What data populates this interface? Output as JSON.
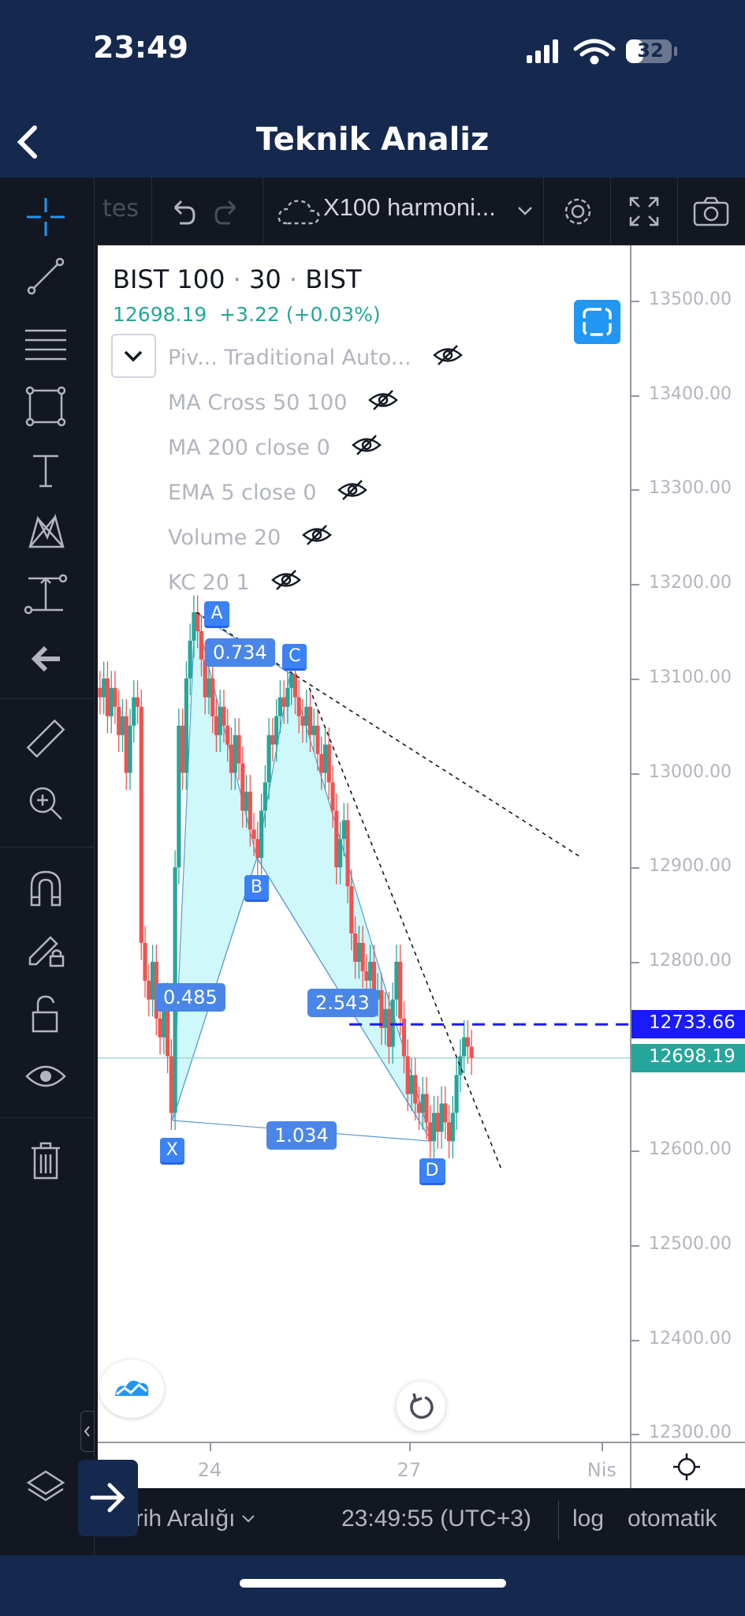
{
  "status_bar": {
    "time": "23:49",
    "battery": "32"
  },
  "header": {
    "title": "Teknik Analiz",
    "back_icon": "chevron-left-icon"
  },
  "toolbar": {
    "partial_tab": "tes",
    "layout_name": "X100 harmoni..."
  },
  "legend": {
    "symbol": "BIST 100",
    "sep1": "·",
    "interval": "30",
    "sep2": "·",
    "exchange": "BIST",
    "price": "12698.19",
    "change": "+3.22",
    "change_pct": "(+0.03%)",
    "indicators": [
      {
        "label": "Piv... Traditional Auto..."
      },
      {
        "label": "MA Cross 50 100"
      },
      {
        "label": "MA 200 close 0"
      },
      {
        "label": "EMA 5 close 0"
      },
      {
        "label": "Volume 20"
      },
      {
        "label": "KC 20 1"
      }
    ]
  },
  "price_axis": {
    "ticks": [
      "13500.00",
      "13400.00",
      "13300.00",
      "13200.00",
      "13100.00",
      "13000.00",
      "12900.00",
      "12800.00",
      "12600.00",
      "12500.00",
      "12400.00",
      "12300.00"
    ],
    "alert_label": "12733.66",
    "last_label": "12698.19"
  },
  "time_axis": {
    "ticks": [
      "24",
      "27",
      "Nis"
    ]
  },
  "bottom_bar": {
    "date_range": "Tarih Aralığı",
    "clock": "23:49:55 (UTC+3)",
    "log": "log",
    "auto": "otomatik"
  },
  "colors": {
    "up": "#26a69a",
    "down": "#ef5350",
    "alert": "#1a1aff",
    "last": "#26a69a",
    "pattern_fill": "#cff8fb",
    "pattern_line": "#5b9bd5",
    "accent": "#2196f3"
  },
  "chart_data": {
    "type": "candlestick",
    "symbol": "BIST 100",
    "interval": "30",
    "ylim": [
      12300,
      13500
    ],
    "candle_range_days": [
      22.35,
      27.94
    ],
    "closes": [
      13080,
      13100,
      13060,
      13090,
      13070,
      13040,
      13060,
      13000,
      13050,
      13080,
      13070,
      12820,
      12780,
      12760,
      12800,
      12740,
      12720,
      12760,
      12700,
      12640,
      12900,
      13050,
      13000,
      13100,
      13140,
      13170,
      13150,
      13120,
      13080,
      13100,
      13060,
      13040,
      13070,
      13050,
      13030,
      13000,
      13040,
      13010,
      12960,
      12980,
      12940,
      12930,
      12910,
      12960,
      12990,
      13040,
      13030,
      13060,
      13080,
      13070,
      13090,
      13105,
      13080,
      13060,
      13050,
      13070,
      13040,
      13050,
      13020,
      13000,
      13030,
      12990,
      12960,
      12900,
      12930,
      12950,
      12880,
      12830,
      12800,
      12820,
      12790,
      12780,
      12800,
      12760,
      12770,
      12730,
      12750,
      12710,
      12760,
      12800,
      12740,
      12700,
      12660,
      12680,
      12650,
      12640,
      12660,
      12630,
      12610,
      12640,
      12620,
      12650,
      12630,
      12610,
      12640,
      12680,
      12700,
      12720,
      12710,
      12698.19
    ],
    "pattern": {
      "points": [
        {
          "label": "X",
          "day": 23.44,
          "price": 12632
        },
        {
          "label": "A",
          "day": 23.78,
          "price": 13170
        },
        {
          "label": "B",
          "day": 24.71,
          "price": 12910
        },
        {
          "label": "C",
          "day": 25.21,
          "price": 13105
        },
        {
          "label": "D",
          "day": 27.34,
          "price": 12610
        }
      ],
      "ratios": {
        "XB": "0.485",
        "AC": "0.734",
        "BD": "2.543",
        "XD": "1.034"
      }
    },
    "trendlines": [
      {
        "from": [
          23.8,
          13170
        ],
        "to": [
          29.6,
          12910
        ]
      },
      {
        "from": [
          25.5,
          13090
        ],
        "to": [
          28.39,
          12580
        ]
      }
    ],
    "alert_line": {
      "price": 12733.66,
      "from_day": 26.1
    },
    "last_price": 12698.19
  }
}
